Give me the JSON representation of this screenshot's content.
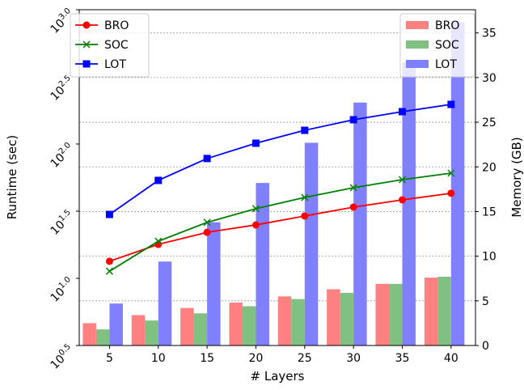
{
  "chart_data": {
    "type": "bar+line",
    "title": "",
    "xlabel": "# Layers",
    "ylabel_left": "Runtime (sec)",
    "ylabel_right": "Memory (GB)",
    "x": [
      5,
      10,
      15,
      20,
      25,
      30,
      35,
      40
    ],
    "x_tick_labels": [
      "5",
      "10",
      "15",
      "20",
      "25",
      "30",
      "35",
      "40"
    ],
    "xlim": [
      1.9,
      42.5
    ],
    "left_axis": {
      "scale": "log10",
      "ylim_exponent": [
        0.5,
        3.0
      ],
      "tick_exponents": [
        "0.5",
        "1.0",
        "1.5",
        "2.0",
        "2.5",
        "3.0"
      ],
      "tick_base": "10"
    },
    "right_axis": {
      "scale": "linear",
      "ylim": [
        0,
        37.6
      ],
      "ticks": [
        "0",
        "5",
        "10",
        "15",
        "20",
        "25",
        "30",
        "35"
      ]
    },
    "grid": "horizontal dotted at right-axis ticks",
    "line_series": [
      {
        "name": "BRO",
        "color": "#ff0000",
        "marker": "circle",
        "values_sec": [
          13.4,
          17.9,
          22.0,
          25.0,
          29.1,
          33.9,
          38.4,
          43.0
        ]
      },
      {
        "name": "SOC",
        "color": "#008000",
        "marker": "x",
        "values_sec": [
          11.3,
          18.9,
          26.1,
          33.0,
          40.0,
          47.3,
          54.3,
          60.7
        ]
      },
      {
        "name": "LOT",
        "color": "#0000ff",
        "marker": "square",
        "values_sec": [
          29.9,
          53.6,
          78.0,
          101.4,
          126.5,
          151.7,
          174.2,
          197.2
        ]
      }
    ],
    "bar_series": [
      {
        "name": "BRO",
        "color": "#ff8080",
        "values_gb": [
          2.5,
          3.4,
          4.2,
          4.8,
          5.5,
          6.3,
          6.9,
          7.6
        ]
      },
      {
        "name": "SOC",
        "color": "#80c080",
        "values_gb": [
          1.8,
          2.8,
          3.6,
          4.4,
          5.2,
          5.9,
          6.9,
          7.7
        ]
      },
      {
        "name": "LOT",
        "color": "#8080ff",
        "values_gb": [
          4.7,
          9.4,
          13.8,
          18.2,
          22.7,
          27.2,
          31.7,
          36.2
        ]
      }
    ],
    "legend_lines": "top-left",
    "legend_bars": "top-right"
  }
}
